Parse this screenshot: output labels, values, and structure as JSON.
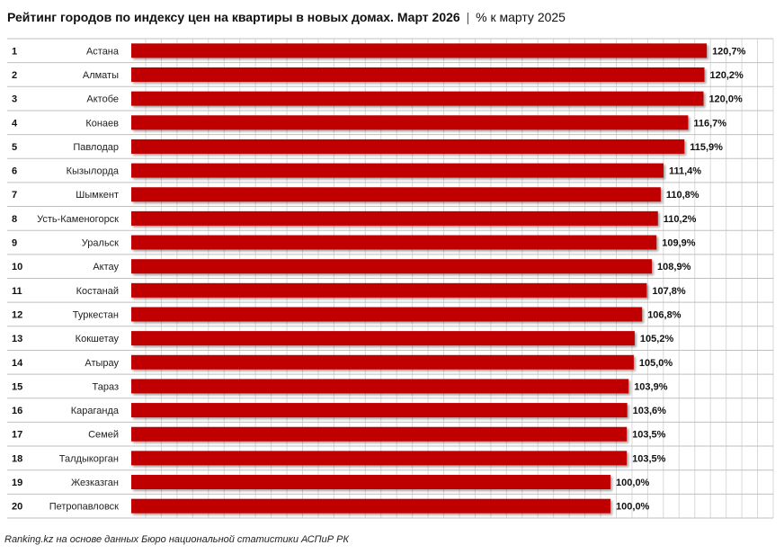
{
  "title": {
    "main": "Рейтинг городов по индексу цен на квартиры в новых домах. Март 2026",
    "separator": "|",
    "sub": "% к марту 2025"
  },
  "source": "Ranking.kz на основе данных Бюро национальной статистики АСПиР РК",
  "colors": {
    "bar": "#c00000",
    "grid": "#d9d9d9",
    "row_line": "#bfbfbf"
  },
  "chart_data": {
    "type": "bar",
    "orientation": "horizontal",
    "title": "Рейтинг городов по индексу цен на квартиры в новых домах. Март 2026 | % к марту 2025",
    "xlabel": "",
    "ylabel": "",
    "xlim": [
      0,
      135
    ],
    "grid": true,
    "ranks": [
      "1",
      "2",
      "3",
      "4",
      "5",
      "6",
      "7",
      "8",
      "9",
      "10",
      "11",
      "12",
      "13",
      "14",
      "15",
      "16",
      "17",
      "18",
      "19",
      "20"
    ],
    "categories": [
      "Астана",
      "Алматы",
      "Актобе",
      "Конаев",
      "Павлодар",
      "Кызылорда",
      "Шымкент",
      "Усть-Каменогорск",
      "Уральск",
      "Актау",
      "Костанай",
      "Туркестан",
      "Кокшетау",
      "Атырау",
      "Тараз",
      "Караганда",
      "Семей",
      "Талдыкорган",
      "Жезказган",
      "Петропавловск"
    ],
    "values": [
      120.7,
      120.2,
      120.0,
      116.7,
      115.9,
      111.4,
      110.8,
      110.2,
      109.9,
      108.9,
      107.8,
      106.8,
      105.2,
      105.0,
      103.9,
      103.6,
      103.5,
      103.5,
      100.0,
      100.0
    ],
    "value_labels": [
      "120,7%",
      "120,2%",
      "120,0%",
      "116,7%",
      "115,9%",
      "111,4%",
      "110,8%",
      "110,2%",
      "109,9%",
      "108,9%",
      "107,8%",
      "106,8%",
      "105,2%",
      "105,0%",
      "103,9%",
      "103,6%",
      "103,5%",
      "103,5%",
      "100,0%",
      "100,0%"
    ]
  }
}
